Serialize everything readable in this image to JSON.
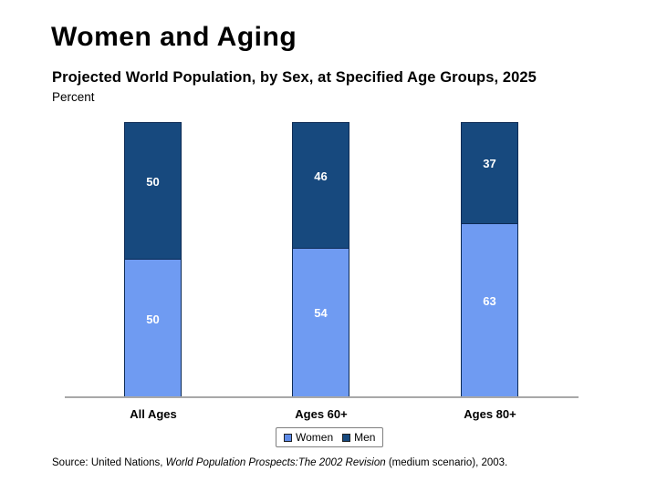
{
  "header": {
    "slide_title": "Women and Aging"
  },
  "chart_data": {
    "type": "bar",
    "subtype": "stacked-100-percent",
    "title": "Projected World Population, by Sex, at Specified Age Groups, 2025",
    "ylabel": "Percent",
    "xlabel": "",
    "categories": [
      "All Ages",
      "Ages 60+",
      "Ages 80+"
    ],
    "series": [
      {
        "name": "Women",
        "color": "#6F9BF2",
        "values": [
          50,
          54,
          63
        ]
      },
      {
        "name": "Men",
        "color": "#17497E",
        "values": [
          50,
          46,
          37
        ]
      }
    ],
    "stack_order_top_to_bottom": [
      "Men",
      "Women"
    ],
    "ylim": [
      0,
      100
    ],
    "grid": false,
    "value_labels_color": "#FFFFFF",
    "legend_position": "bottom-center",
    "baseline_color": "#A8A8A8"
  },
  "legend": {
    "women_label": "Women",
    "men_label": "Men",
    "women_swatch_color": "#5E8BE8",
    "men_swatch_color": "#17497E"
  },
  "source": {
    "prefix": "Source: United Nations, ",
    "italic_title": "World Population Prospects:The 2002 Revision",
    "suffix": " (medium scenario), 2003."
  }
}
